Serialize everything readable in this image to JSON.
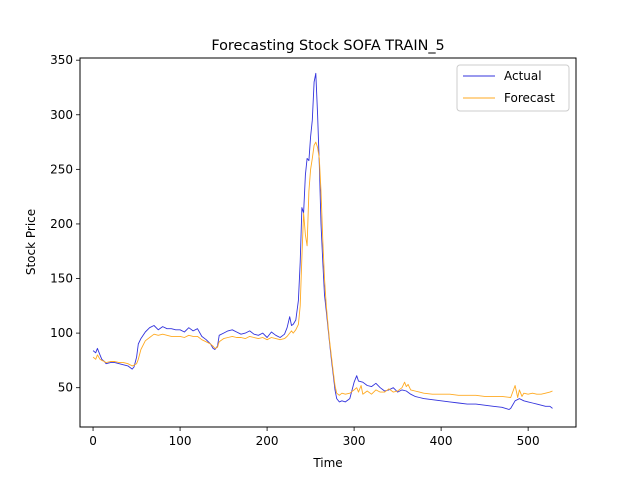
{
  "chart_data": {
    "type": "line",
    "title": "Forecasting Stock SOFA TRAIN_5",
    "xlabel": "Time",
    "ylabel": "Stock Price",
    "xlim": [
      -15,
      555
    ],
    "ylim": [
      14,
      352
    ],
    "xticks": [
      0,
      100,
      200,
      300,
      400,
      500
    ],
    "yticks": [
      50,
      100,
      150,
      200,
      250,
      300,
      350
    ],
    "grid": false,
    "legend_position": "top-right",
    "series": [
      {
        "name": "Actual",
        "color": "#3333dd",
        "x": [
          0,
          3,
          5,
          8,
          10,
          13,
          15,
          20,
          25,
          30,
          35,
          40,
          45,
          47,
          50,
          52,
          55,
          60,
          65,
          70,
          75,
          80,
          85,
          90,
          95,
          100,
          105,
          110,
          115,
          120,
          125,
          130,
          135,
          138,
          140,
          143,
          145,
          150,
          155,
          160,
          165,
          170,
          175,
          180,
          185,
          190,
          195,
          200,
          205,
          210,
          215,
          220,
          223,
          226,
          228,
          230,
          233,
          236,
          238,
          240,
          242,
          244,
          246,
          248,
          250,
          252,
          254,
          256,
          258,
          260,
          262,
          264,
          266,
          268,
          270,
          272,
          274,
          276,
          278,
          280,
          283,
          286,
          290,
          295,
          300,
          303,
          305,
          310,
          315,
          320,
          325,
          330,
          335,
          340,
          345,
          350,
          355,
          360,
          365,
          370,
          375,
          380,
          390,
          400,
          410,
          420,
          430,
          440,
          450,
          460,
          470,
          478,
          480,
          485,
          490,
          495,
          500,
          505,
          510,
          515,
          520,
          525,
          528
        ],
        "y": [
          84,
          82,
          86,
          80,
          76,
          74,
          72,
          73,
          73,
          72,
          71,
          70,
          67,
          69,
          78,
          90,
          95,
          101,
          105,
          107,
          103,
          106,
          104,
          104,
          103,
          103,
          101,
          105,
          102,
          104,
          97,
          94,
          90,
          86,
          85,
          88,
          98,
          100,
          102,
          103,
          101,
          99,
          100,
          102,
          99,
          98,
          100,
          96,
          101,
          98,
          96,
          99,
          105,
          115,
          107,
          108,
          112,
          130,
          165,
          215,
          210,
          245,
          260,
          258,
          280,
          295,
          330,
          338,
          300,
          255,
          200,
          165,
          135,
          120,
          105,
          90,
          75,
          62,
          48,
          40,
          37,
          38,
          37,
          40,
          55,
          61,
          56,
          55,
          52,
          51,
          54,
          50,
          47,
          48,
          50,
          46,
          48,
          47,
          44,
          42,
          41,
          40,
          39,
          38,
          37,
          36,
          35,
          35,
          34,
          33,
          32,
          30,
          31,
          38,
          40,
          38,
          37,
          36,
          35,
          34,
          33,
          33,
          31
        ]
      },
      {
        "name": "Forecast",
        "color": "#ffaa22",
        "x": [
          0,
          3,
          5,
          8,
          10,
          13,
          15,
          20,
          25,
          30,
          35,
          40,
          45,
          48,
          50,
          52,
          55,
          60,
          65,
          70,
          75,
          80,
          85,
          90,
          95,
          100,
          105,
          110,
          115,
          120,
          125,
          130,
          135,
          138,
          140,
          143,
          145,
          150,
          155,
          160,
          165,
          170,
          175,
          180,
          185,
          190,
          195,
          200,
          205,
          210,
          215,
          220,
          223,
          226,
          228,
          230,
          233,
          236,
          238,
          240,
          242,
          244,
          246,
          248,
          250,
          252,
          254,
          256,
          258,
          260,
          262,
          264,
          266,
          268,
          270,
          272,
          274,
          276,
          278,
          280,
          283,
          286,
          290,
          295,
          300,
          303,
          305,
          308,
          310,
          315,
          320,
          325,
          330,
          335,
          340,
          345,
          350,
          355,
          358,
          360,
          362,
          365,
          370,
          375,
          380,
          390,
          400,
          410,
          420,
          430,
          440,
          450,
          460,
          470,
          480,
          485,
          488,
          490,
          493,
          495,
          500,
          505,
          510,
          515,
          520,
          525,
          528
        ],
        "y": [
          78,
          76,
          80,
          76,
          75,
          74,
          73,
          74,
          74,
          73,
          73,
          72,
          70,
          71,
          72,
          76,
          85,
          93,
          96,
          99,
          98,
          99,
          98,
          97,
          97,
          97,
          96,
          98,
          97,
          97,
          94,
          92,
          90,
          88,
          86,
          87,
          92,
          95,
          96,
          97,
          96,
          96,
          95,
          97,
          96,
          95,
          96,
          94,
          96,
          95,
          94,
          95,
          97,
          100,
          102,
          100,
          103,
          108,
          125,
          170,
          210,
          190,
          180,
          230,
          250,
          260,
          272,
          275,
          270,
          260,
          230,
          185,
          150,
          125,
          108,
          92,
          78,
          65,
          52,
          45,
          43,
          45,
          44,
          45,
          48,
          50,
          46,
          52,
          44,
          47,
          44,
          48,
          46,
          46,
          49,
          46,
          47,
          50,
          55,
          51,
          53,
          48,
          47,
          46,
          45,
          44,
          44,
          44,
          43,
          43,
          43,
          42,
          42,
          42,
          41,
          52,
          41,
          48,
          42,
          45,
          44,
          45,
          44,
          44,
          45,
          46,
          47
        ]
      }
    ]
  }
}
